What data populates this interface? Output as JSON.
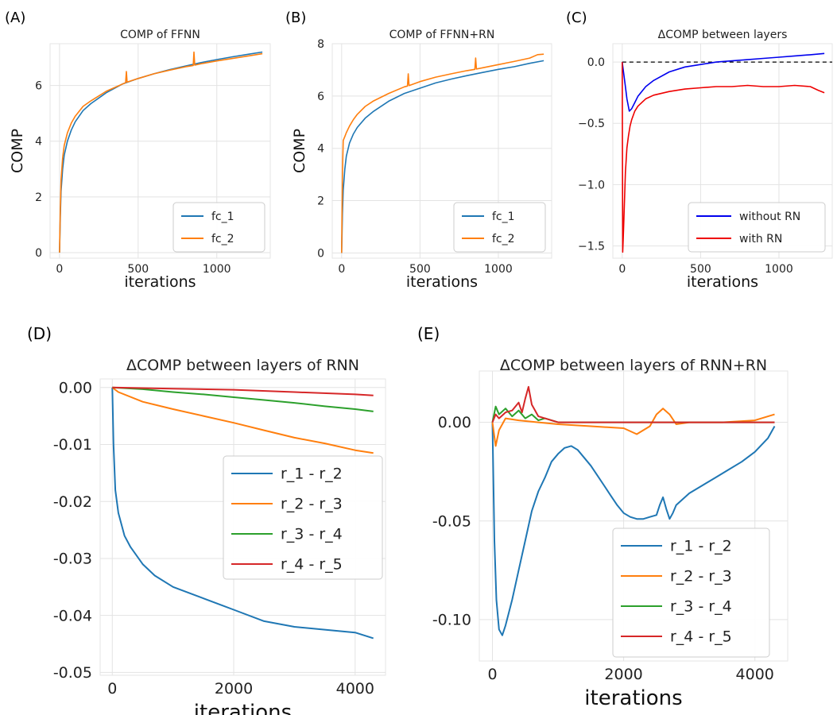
{
  "chart_data": [
    {
      "panel": "(A)",
      "type": "line",
      "title": "COMP of FFNN",
      "xlabel": "iterations",
      "ylabel": "COMP",
      "xlim": [
        -60,
        1340
      ],
      "ylim": [
        -0.2,
        7.5
      ],
      "xticks": [
        0,
        500,
        1000
      ],
      "xtick_labels": [
        "0",
        "500",
        "1000"
      ],
      "yticks": [
        0,
        2,
        4,
        6
      ],
      "ytick_labels": [
        "0",
        "2",
        "4",
        "6"
      ],
      "grid": true,
      "legend": "bottom-right",
      "series": [
        {
          "name": "fc_1",
          "color": "#1f77b4",
          "x": [
            0,
            5,
            10,
            20,
            30,
            50,
            75,
            100,
            150,
            200,
            300,
            400,
            500,
            600,
            700,
            800,
            900,
            1000,
            1100,
            1200,
            1290
          ],
          "y": [
            0,
            1.3,
            2.2,
            3.0,
            3.5,
            4.0,
            4.4,
            4.7,
            5.1,
            5.35,
            5.75,
            6.05,
            6.25,
            6.42,
            6.57,
            6.7,
            6.82,
            6.93,
            7.03,
            7.12,
            7.2
          ]
        },
        {
          "name": "fc_2",
          "color": "#ff7f0e",
          "x": [
            0,
            5,
            10,
            20,
            30,
            50,
            75,
            100,
            150,
            200,
            300,
            400,
            420,
            425,
            430,
            500,
            600,
            700,
            800,
            850,
            855,
            860,
            900,
            1000,
            1100,
            1200,
            1290
          ],
          "y": [
            0,
            1.6,
            2.6,
            3.4,
            3.85,
            4.3,
            4.65,
            4.9,
            5.25,
            5.45,
            5.8,
            6.05,
            6.1,
            6.5,
            6.12,
            6.25,
            6.42,
            6.55,
            6.67,
            6.72,
            7.2,
            6.73,
            6.78,
            6.88,
            6.97,
            7.06,
            7.14
          ]
        }
      ]
    },
    {
      "panel": "(B)",
      "type": "line",
      "title": "COMP of FFNN+RN",
      "xlabel": "iterations",
      "ylabel": "COMP",
      "xlim": [
        -60,
        1340
      ],
      "ylim": [
        -0.2,
        8.0
      ],
      "xticks": [
        0,
        500,
        1000
      ],
      "xtick_labels": [
        "0",
        "500",
        "1000"
      ],
      "yticks": [
        0,
        2,
        4,
        6,
        8
      ],
      "ytick_labels": [
        "0",
        "2",
        "4",
        "6",
        "8"
      ],
      "grid": true,
      "legend": "bottom-right",
      "series": [
        {
          "name": "fc_1",
          "color": "#1f77b4",
          "x": [
            0,
            5,
            10,
            20,
            30,
            50,
            75,
            100,
            150,
            200,
            300,
            400,
            500,
            600,
            700,
            800,
            900,
            1000,
            1100,
            1200,
            1290
          ],
          "y": [
            0,
            1.5,
            2.4,
            3.2,
            3.7,
            4.2,
            4.55,
            4.8,
            5.15,
            5.4,
            5.8,
            6.1,
            6.3,
            6.5,
            6.65,
            6.78,
            6.9,
            7.02,
            7.12,
            7.25,
            7.35
          ]
        },
        {
          "name": "fc_2",
          "color": "#ff7f0e",
          "x": [
            0,
            5,
            10,
            20,
            30,
            50,
            75,
            100,
            150,
            200,
            300,
            400,
            420,
            425,
            430,
            500,
            600,
            700,
            800,
            850,
            855,
            860,
            900,
            1000,
            1100,
            1200,
            1250,
            1290
          ],
          "y": [
            0,
            3.0,
            4.3,
            4.45,
            4.6,
            4.85,
            5.1,
            5.3,
            5.6,
            5.8,
            6.1,
            6.35,
            6.38,
            6.85,
            6.4,
            6.55,
            6.72,
            6.85,
            6.97,
            7.02,
            7.45,
            7.03,
            7.08,
            7.2,
            7.32,
            7.45,
            7.58,
            7.6
          ]
        }
      ]
    },
    {
      "panel": "(C)",
      "type": "line",
      "title": "ΔCOMP between layers",
      "xlabel": "iterations",
      "ylabel": "",
      "xlim": [
        -60,
        1340
      ],
      "ylim": [
        -1.6,
        0.15
      ],
      "xticks": [
        0,
        500,
        1000
      ],
      "xtick_labels": [
        "0",
        "500",
        "1000"
      ],
      "yticks": [
        0.0,
        -0.5,
        -1.0,
        -1.5
      ],
      "ytick_labels": [
        "0.0",
        "−0.5",
        "−1.0",
        "−1.5"
      ],
      "grid": true,
      "legend": "bottom-right",
      "reference_line": {
        "y": 0,
        "style": "dashed",
        "color": "#000000"
      },
      "series": [
        {
          "name": "without RN",
          "color": "#0000ee",
          "x": [
            0,
            10,
            20,
            30,
            45,
            60,
            80,
            100,
            150,
            200,
            300,
            400,
            500,
            600,
            700,
            800,
            900,
            1000,
            1100,
            1200,
            1290
          ],
          "y": [
            0,
            -0.1,
            -0.2,
            -0.3,
            -0.4,
            -0.38,
            -0.33,
            -0.28,
            -0.2,
            -0.15,
            -0.08,
            -0.04,
            -0.02,
            0.0,
            0.01,
            0.02,
            0.03,
            0.04,
            0.05,
            0.06,
            0.07
          ]
        },
        {
          "name": "with RN",
          "color": "#ee0000",
          "x": [
            0,
            3,
            6,
            10,
            15,
            20,
            30,
            40,
            50,
            60,
            80,
            100,
            150,
            200,
            300,
            400,
            500,
            600,
            700,
            800,
            900,
            1000,
            1100,
            1200,
            1250,
            1290
          ],
          "y": [
            0,
            -1.55,
            -1.45,
            -1.3,
            -1.1,
            -0.9,
            -0.7,
            -0.6,
            -0.52,
            -0.47,
            -0.4,
            -0.36,
            -0.3,
            -0.27,
            -0.24,
            -0.22,
            -0.21,
            -0.2,
            -0.2,
            -0.19,
            -0.2,
            -0.2,
            -0.19,
            -0.2,
            -0.23,
            -0.25
          ]
        }
      ]
    },
    {
      "panel": "(D)",
      "type": "line",
      "title": "ΔCOMP between layers of RNN",
      "xlabel": "iterations",
      "ylabel": "",
      "xlim": [
        -200,
        4500
      ],
      "ylim": [
        -0.0505,
        0.0015
      ],
      "xticks": [
        0,
        2000,
        4000
      ],
      "xtick_labels": [
        "0",
        "2000",
        "4000"
      ],
      "yticks": [
        0.0,
        -0.01,
        -0.02,
        -0.03,
        -0.04,
        -0.05
      ],
      "ytick_labels": [
        "0.00",
        "-0.01",
        "-0.02",
        "-0.03",
        "-0.04",
        "-0.05"
      ],
      "grid": true,
      "legend": "center-right",
      "series": [
        {
          "name": "r_1 - r_2",
          "color": "#1f77b4",
          "x": [
            0,
            20,
            50,
            100,
            200,
            300,
            500,
            700,
            1000,
            1500,
            2000,
            2500,
            3000,
            3500,
            4000,
            4300
          ],
          "y": [
            0,
            -0.01,
            -0.018,
            -0.022,
            -0.026,
            -0.028,
            -0.031,
            -0.033,
            -0.035,
            -0.037,
            -0.039,
            -0.041,
            -0.042,
            -0.0425,
            -0.043,
            -0.044
          ]
        },
        {
          "name": "r_2 - r_3",
          "color": "#ff7f0e",
          "x": [
            0,
            100,
            500,
            1000,
            1500,
            2000,
            2500,
            3000,
            3500,
            4000,
            4300
          ],
          "y": [
            0,
            -0.0008,
            -0.0025,
            -0.0038,
            -0.005,
            -0.0062,
            -0.0075,
            -0.0088,
            -0.0098,
            -0.011,
            -0.0115
          ]
        },
        {
          "name": "r_3 - r_4",
          "color": "#2ca02c",
          "x": [
            0,
            500,
            1000,
            1500,
            2000,
            2500,
            3000,
            3500,
            4000,
            4300
          ],
          "y": [
            0,
            -0.0003,
            -0.0008,
            -0.0012,
            -0.0017,
            -0.0022,
            -0.0027,
            -0.0033,
            -0.0038,
            -0.0042
          ]
        },
        {
          "name": "r_4 - r_5",
          "color": "#d62728",
          "x": [
            0,
            1000,
            2000,
            3000,
            4000,
            4300
          ],
          "y": [
            0,
            -0.0002,
            -0.0004,
            -0.0008,
            -0.0012,
            -0.0014
          ]
        }
      ]
    },
    {
      "panel": "(E)",
      "type": "line",
      "title": "ΔCOMP between layers of RNN+RN",
      "xlabel": "iterations",
      "ylabel": "",
      "xlim": [
        -200,
        4500
      ],
      "ylim": [
        -0.121,
        0.026
      ],
      "xticks": [
        0,
        2000,
        4000
      ],
      "xtick_labels": [
        "0",
        "2000",
        "4000"
      ],
      "yticks": [
        0.0,
        -0.05,
        -0.1
      ],
      "ytick_labels": [
        "0.00",
        "-0.05",
        "-0.10"
      ],
      "grid": true,
      "legend": "bottom-right",
      "series": [
        {
          "name": "r_1 - r_2",
          "color": "#1f77b4",
          "x": [
            0,
            30,
            60,
            100,
            150,
            200,
            300,
            400,
            500,
            600,
            700,
            800,
            900,
            1000,
            1100,
            1200,
            1300,
            1400,
            1500,
            1600,
            1700,
            1800,
            1900,
            2000,
            2100,
            2200,
            2300,
            2400,
            2500,
            2550,
            2600,
            2650,
            2700,
            2750,
            2800,
            3000,
            3200,
            3400,
            3600,
            3800,
            4000,
            4200,
            4300
          ],
          "y": [
            0,
            -0.06,
            -0.09,
            -0.105,
            -0.108,
            -0.103,
            -0.09,
            -0.075,
            -0.06,
            -0.045,
            -0.035,
            -0.028,
            -0.02,
            -0.016,
            -0.013,
            -0.012,
            -0.014,
            -0.018,
            -0.022,
            -0.027,
            -0.032,
            -0.037,
            -0.042,
            -0.046,
            -0.048,
            -0.049,
            -0.049,
            -0.048,
            -0.047,
            -0.042,
            -0.038,
            -0.044,
            -0.049,
            -0.046,
            -0.042,
            -0.036,
            -0.032,
            -0.028,
            -0.024,
            -0.02,
            -0.015,
            -0.008,
            -0.002
          ]
        },
        {
          "name": "r_2 - r_3",
          "color": "#ff7f0e",
          "x": [
            0,
            50,
            100,
            200,
            400,
            700,
            1000,
            1500,
            2000,
            2200,
            2400,
            2500,
            2600,
            2700,
            2800,
            3000,
            3500,
            4000,
            4300
          ],
          "y": [
            0,
            -0.012,
            -0.004,
            0.002,
            0.001,
            0.0,
            -0.001,
            -0.002,
            -0.003,
            -0.006,
            -0.002,
            0.004,
            0.007,
            0.004,
            -0.001,
            0.0,
            0.0,
            0.001,
            0.004
          ]
        },
        {
          "name": "r_3 - r_4",
          "color": "#2ca02c",
          "x": [
            0,
            50,
            100,
            200,
            300,
            400,
            500,
            600,
            700,
            800,
            1000,
            1500,
            2000,
            2500,
            3000,
            3500,
            4000,
            4300
          ],
          "y": [
            0,
            0.008,
            0.004,
            0.007,
            0.003,
            0.006,
            0.002,
            0.004,
            0.001,
            0.002,
            0.0,
            0.0,
            0.0,
            0.0,
            0.0,
            0.0,
            0.0,
            0.0
          ]
        },
        {
          "name": "r_4 - r_5",
          "color": "#d62728",
          "x": [
            0,
            50,
            100,
            200,
            300,
            400,
            450,
            500,
            550,
            600,
            650,
            700,
            800,
            1000,
            1500,
            2000,
            3000,
            4000,
            4300
          ],
          "y": [
            0,
            0.004,
            0.002,
            0.005,
            0.006,
            0.01,
            0.005,
            0.012,
            0.018,
            0.009,
            0.006,
            0.003,
            0.002,
            0.0,
            0.0,
            0.0,
            0.0,
            0.0,
            0.0
          ]
        }
      ]
    }
  ]
}
